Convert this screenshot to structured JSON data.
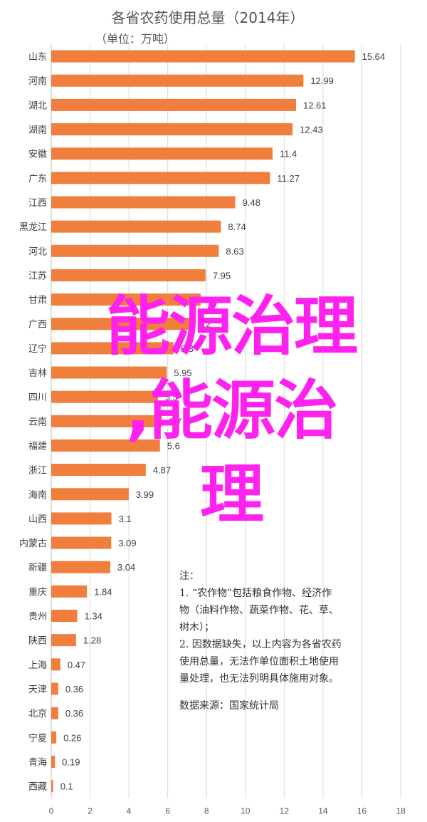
{
  "chart_data": {
    "type": "bar",
    "orientation": "horizontal",
    "title": "各省农药使用总量（2014年）",
    "subtitle": "（单位：万吨）",
    "categories": [
      "山东",
      "河南",
      "湖北",
      "湖南",
      "安徽",
      "广东",
      "江西",
      "黑龙江",
      "河北",
      "江苏",
      "甘肃",
      "广西",
      "辽宁",
      "吉林",
      "四川",
      "云南",
      "福建",
      "浙江",
      "海南",
      "山西",
      "内蒙古",
      "新疆",
      "重庆",
      "贵州",
      "陕西",
      "上海",
      "天津",
      "北京",
      "宁夏",
      "青海",
      "西藏"
    ],
    "values": [
      15.64,
      12.99,
      12.61,
      12.43,
      11.4,
      11.27,
      9.48,
      8.74,
      8.63,
      7.95,
      7.7,
      7.2,
      6.3,
      5.95,
      5.5,
      5.7,
      5.6,
      4.87,
      3.99,
      3.1,
      3.09,
      3.04,
      1.84,
      1.34,
      1.28,
      0.47,
      0.36,
      0.36,
      0.26,
      0.19,
      0.1
    ],
    "value_labels": [
      "15.64",
      "12.99",
      "12.61",
      "12.43",
      "11.4",
      "11.27",
      "9.48",
      "8.74",
      "8.63",
      "7.95",
      "7.7",
      "7.2",
      "6.3",
      "5.95",
      "5.5",
      "5.7",
      "5.6",
      "4.87",
      "3.99",
      "3.1",
      "3.09",
      "3.04",
      "1.84",
      "1.34",
      "1.28",
      "0.47",
      "0.36",
      "0.36",
      "0.26",
      "0.19",
      "0.1"
    ],
    "xlim": [
      0,
      18
    ],
    "xticks": [
      0,
      2,
      4,
      6,
      8,
      10,
      12,
      14,
      16,
      18
    ],
    "xlabel": "",
    "ylabel": "",
    "bar_color": "#F07E3C",
    "grid": true
  },
  "note": {
    "heading": "注：",
    "lines": [
      "1. “农作物”包括粮食作物、经济作",
      "物（油料作物、蔬菜作物、花、草、",
      "树木）；",
      "2. 因数据缺失，以上内容为各省农药",
      "使用总量，无法作单位面积土地使用",
      "量处理，也无法列明具体施用对象。"
    ],
    "source": "数据来源：国家统计局"
  },
  "overlay": {
    "line1": "能源治理",
    "line2": ",能源治",
    "line3": "理",
    "color": "#FF22EE"
  }
}
